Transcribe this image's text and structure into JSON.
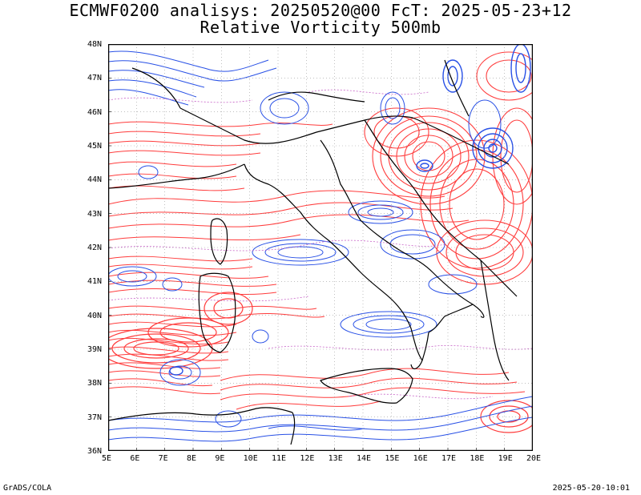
{
  "title_line1": "ECMWF0200 analisys: 20250520@00 FcT: 2025-05-23+12",
  "title_line2": "Relative Vorticity 500mb",
  "footer_left": "GrADS/COLA",
  "footer_right": "2025-05-20-10:01",
  "map": {
    "projection": "latlon",
    "lon_range": [
      5,
      20
    ],
    "lat_range": [
      36,
      48
    ],
    "grid": "dotted",
    "colors": {
      "positive": "#ff3c3c",
      "negative": "#2850e6",
      "zero": "#c864c8",
      "coast": "#000000"
    },
    "lon_ticks": [
      "5E",
      "6E",
      "7E",
      "8E",
      "9E",
      "10E",
      "11E",
      "12E",
      "13E",
      "14E",
      "15E",
      "16E",
      "17E",
      "18E",
      "19E",
      "20E"
    ],
    "lat_ticks": [
      "36N",
      "37N",
      "38N",
      "39N",
      "40N",
      "41N",
      "42N",
      "43N",
      "44N",
      "45N",
      "46N",
      "47N",
      "48N"
    ]
  }
}
